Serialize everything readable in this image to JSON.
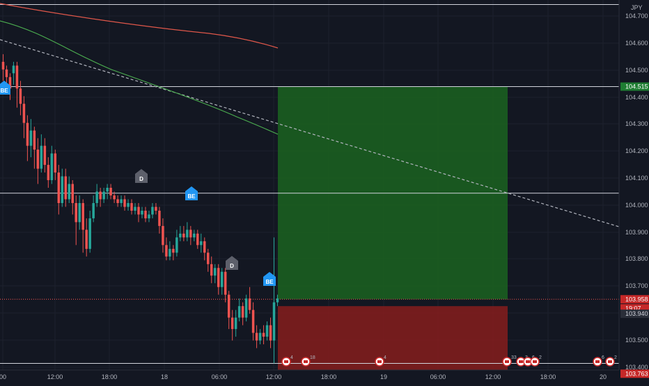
{
  "currency": "JPY",
  "colors": {
    "background": "#131722",
    "up": "#26a69a",
    "down": "#ef5350",
    "profit_zone": "#1b5e20",
    "loss_zone": "#7f1d1d",
    "level_line": "#d1d4dc",
    "trendline": "#b2b5be",
    "ma_slow": "#e0574a",
    "ma_fast": "#4caf50",
    "price_label_green": "#1e7d32",
    "price_label_red": "#c62828",
    "be_marker": "#2196f3",
    "d_marker": "#5d606b"
  },
  "price_scale": {
    "ticks": [
      "104.700",
      "104.600",
      "104.500",
      "104.400",
      "104.300",
      "104.200",
      "104.100",
      "104.000",
      "103.900",
      "103.800",
      "103.700",
      "103.600",
      "103.500",
      "103.400"
    ]
  },
  "price_labels": {
    "take_profit": "104.515",
    "current_price": "103.958",
    "countdown": "19:07",
    "entry": "103.940",
    "stop_loss": "103.763"
  },
  "time_axis": {
    "labels": [
      "00",
      "12:00",
      "18:00",
      "18",
      "06:00",
      "12:00",
      "18:00",
      "19",
      "06:00",
      "12:00",
      "18:00",
      "20"
    ]
  },
  "markers": [
    {
      "label": "BE",
      "type": "be"
    },
    {
      "label": "D",
      "type": "d"
    },
    {
      "label": "BE",
      "type": "be"
    },
    {
      "label": "D",
      "type": "d"
    },
    {
      "label": "BE",
      "type": "be"
    }
  ],
  "events": [
    {
      "label": "4"
    },
    {
      "label": "18"
    },
    {
      "label": "4"
    },
    {
      "label": "33"
    },
    {
      "label": "3"
    },
    {
      "label": "6"
    },
    {
      "label": "2"
    },
    {
      "label": "6"
    },
    {
      "label": "2"
    }
  ]
}
